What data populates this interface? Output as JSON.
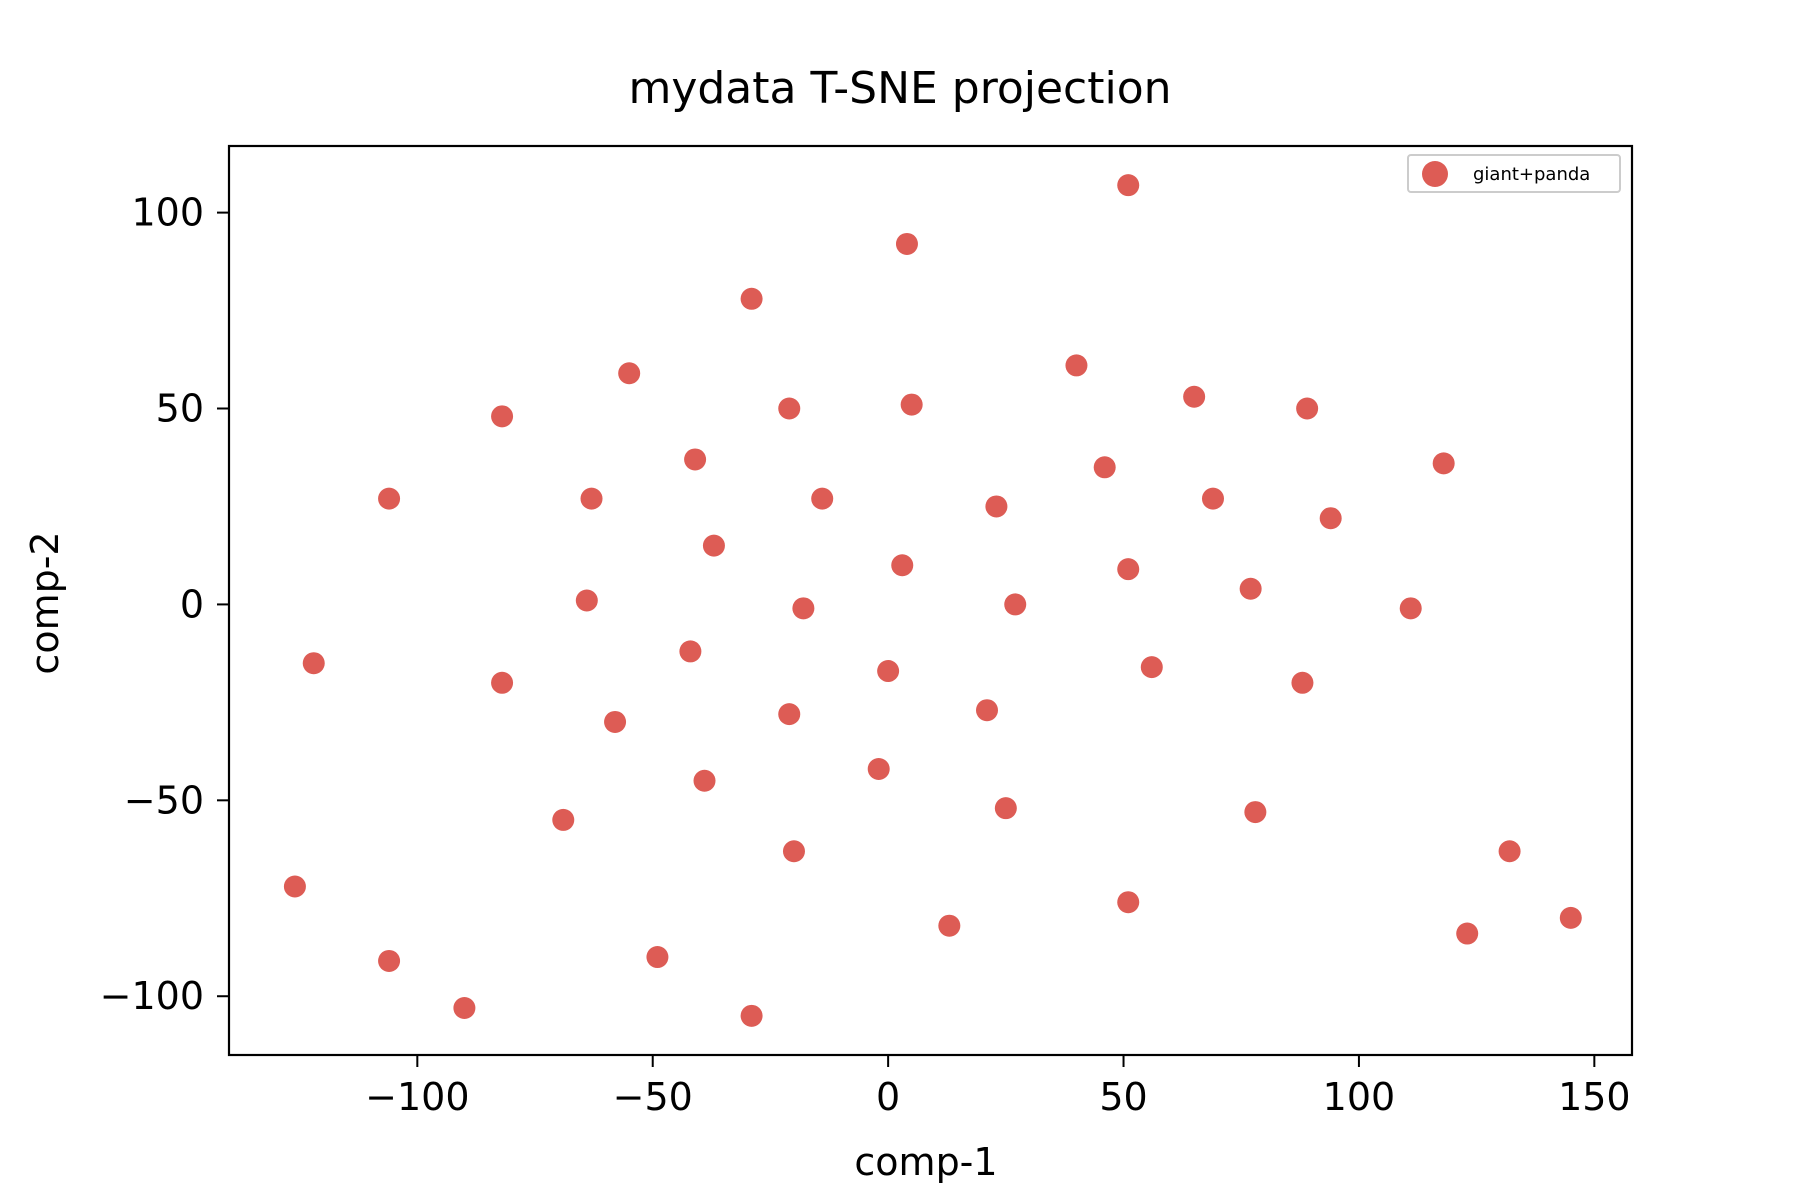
{
  "chart_data": {
    "type": "scatter",
    "title": "mydata T-SNE projection",
    "xlabel": "comp-1",
    "ylabel": "comp-2",
    "xlim": [
      -140,
      158
    ],
    "ylim": [
      -115,
      117
    ],
    "xticks": [
      -100,
      -50,
      0,
      50,
      100,
      150
    ],
    "xtick_labels": [
      "−100",
      "−50",
      "0",
      "50",
      "100",
      "150"
    ],
    "yticks": [
      -100,
      -50,
      0,
      50,
      100
    ],
    "ytick_labels": [
      "−100",
      "−50",
      "0",
      "50",
      "100"
    ],
    "grid": false,
    "legend_position": "top-right",
    "series": [
      {
        "name": "giant+panda",
        "color": "#dd5c55",
        "points": [
          [
            51,
            107
          ],
          [
            4,
            92
          ],
          [
            -29,
            78
          ],
          [
            -55,
            59
          ],
          [
            40,
            61
          ],
          [
            -82,
            48
          ],
          [
            -21,
            50
          ],
          [
            5,
            51
          ],
          [
            65,
            53
          ],
          [
            89,
            50
          ],
          [
            -41,
            37
          ],
          [
            46,
            35
          ],
          [
            118,
            36
          ],
          [
            -106,
            27
          ],
          [
            -63,
            27
          ],
          [
            -14,
            27
          ],
          [
            23,
            25
          ],
          [
            69,
            27
          ],
          [
            94,
            22
          ],
          [
            -37,
            15
          ],
          [
            3,
            10
          ],
          [
            51,
            9
          ],
          [
            77,
            4
          ],
          [
            -64,
            1
          ],
          [
            -18,
            -1
          ],
          [
            27,
            0
          ],
          [
            111,
            -1
          ],
          [
            -122,
            -15
          ],
          [
            -42,
            -12
          ],
          [
            0,
            -17
          ],
          [
            56,
            -16
          ],
          [
            -82,
            -20
          ],
          [
            88,
            -20
          ],
          [
            -58,
            -30
          ],
          [
            -21,
            -28
          ],
          [
            21,
            -27
          ],
          [
            -39,
            -45
          ],
          [
            -2,
            -42
          ],
          [
            25,
            -52
          ],
          [
            -69,
            -55
          ],
          [
            78,
            -53
          ],
          [
            -20,
            -63
          ],
          [
            132,
            -63
          ],
          [
            -126,
            -72
          ],
          [
            51,
            -76
          ],
          [
            13,
            -82
          ],
          [
            145,
            -80
          ],
          [
            123,
            -84
          ],
          [
            -106,
            -91
          ],
          [
            -49,
            -90
          ],
          [
            -90,
            -103
          ],
          [
            -29,
            -105
          ]
        ]
      }
    ]
  }
}
